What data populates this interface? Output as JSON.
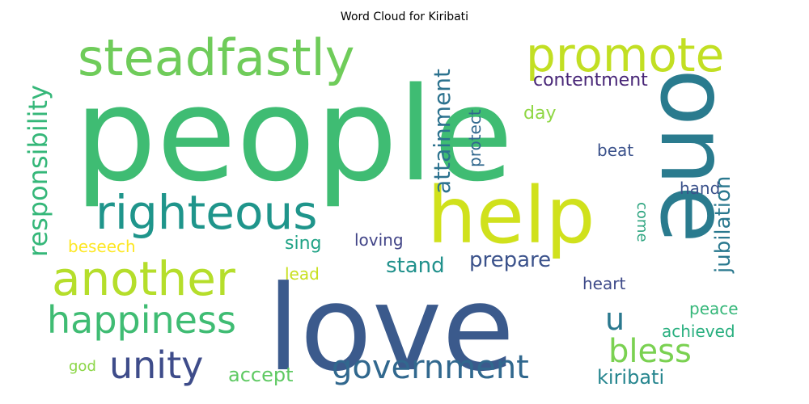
{
  "chart_data": {
    "type": "wordcloud",
    "title": "Word Cloud for Kiribati",
    "colormap": "viridis",
    "background": "#ffffff",
    "words": [
      {
        "text": "people",
        "weight": 1.0,
        "color": "#3fbc73",
        "orientation": "horizontal"
      },
      {
        "text": "love",
        "weight": 0.95,
        "color": "#3b5a8c",
        "orientation": "horizontal"
      },
      {
        "text": "one",
        "weight": 0.72,
        "color": "#2a7b8e",
        "orientation": "vertical"
      },
      {
        "text": "help",
        "weight": 0.62,
        "color": "#d0e11c",
        "orientation": "horizontal"
      },
      {
        "text": "steadfastly",
        "weight": 0.4,
        "color": "#6fcc5a",
        "orientation": "horizontal"
      },
      {
        "text": "promote",
        "weight": 0.36,
        "color": "#c2df23",
        "orientation": "horizontal"
      },
      {
        "text": "another",
        "weight": 0.36,
        "color": "#b5de2b",
        "orientation": "horizontal"
      },
      {
        "text": "righteous",
        "weight": 0.36,
        "color": "#1f958b",
        "orientation": "horizontal"
      },
      {
        "text": "happiness",
        "weight": 0.3,
        "color": "#3fbc73",
        "orientation": "horizontal"
      },
      {
        "text": "unity",
        "weight": 0.3,
        "color": "#3e4c8a",
        "orientation": "horizontal"
      },
      {
        "text": "government",
        "weight": 0.26,
        "color": "#31688e",
        "orientation": "horizontal"
      },
      {
        "text": "bless",
        "weight": 0.26,
        "color": "#7ad151",
        "orientation": "horizontal"
      },
      {
        "text": "responsibility",
        "weight": 0.2,
        "color": "#35b779",
        "orientation": "vertical"
      },
      {
        "text": "attainment",
        "weight": 0.18,
        "color": "#2c728e",
        "orientation": "vertical"
      },
      {
        "text": "jubilation",
        "weight": 0.17,
        "color": "#2a788e",
        "orientation": "vertical"
      },
      {
        "text": "u",
        "weight": 0.22,
        "color": "#2a788e",
        "orientation": "horizontal"
      },
      {
        "text": "contentment",
        "weight": 0.13,
        "color": "#482677",
        "orientation": "horizontal"
      },
      {
        "text": "prepare",
        "weight": 0.16,
        "color": "#3b528b",
        "orientation": "horizontal"
      },
      {
        "text": "stand",
        "weight": 0.16,
        "color": "#21918c",
        "orientation": "horizontal"
      },
      {
        "text": "accept",
        "weight": 0.14,
        "color": "#5ec962",
        "orientation": "horizontal"
      },
      {
        "text": "kiribati",
        "weight": 0.14,
        "color": "#25858e",
        "orientation": "horizontal"
      },
      {
        "text": "sing",
        "weight": 0.13,
        "color": "#20a386",
        "orientation": "horizontal"
      },
      {
        "text": "protect",
        "weight": 0.12,
        "color": "#31688e",
        "orientation": "vertical"
      },
      {
        "text": "loving",
        "weight": 0.12,
        "color": "#414487",
        "orientation": "horizontal"
      },
      {
        "text": "beseech",
        "weight": 0.12,
        "color": "#fde725",
        "orientation": "horizontal"
      },
      {
        "text": "lead",
        "weight": 0.11,
        "color": "#c8e020",
        "orientation": "horizontal"
      },
      {
        "text": "heart",
        "weight": 0.11,
        "color": "#3e4a89",
        "orientation": "horizontal"
      },
      {
        "text": "peace",
        "weight": 0.11,
        "color": "#35b779",
        "orientation": "horizontal"
      },
      {
        "text": "achieved",
        "weight": 0.11,
        "color": "#29af7f",
        "orientation": "horizontal"
      },
      {
        "text": "day",
        "weight": 0.11,
        "color": "#8fd744",
        "orientation": "horizontal"
      },
      {
        "text": "beat",
        "weight": 0.1,
        "color": "#3b528b",
        "orientation": "horizontal"
      },
      {
        "text": "hand",
        "weight": 0.1,
        "color": "#3b528b",
        "orientation": "horizontal"
      },
      {
        "text": "come",
        "weight": 0.09,
        "color": "#2ca47f",
        "orientation": "vertical"
      },
      {
        "text": "god",
        "weight": 0.09,
        "color": "#8bd646",
        "orientation": "horizontal"
      }
    ]
  }
}
